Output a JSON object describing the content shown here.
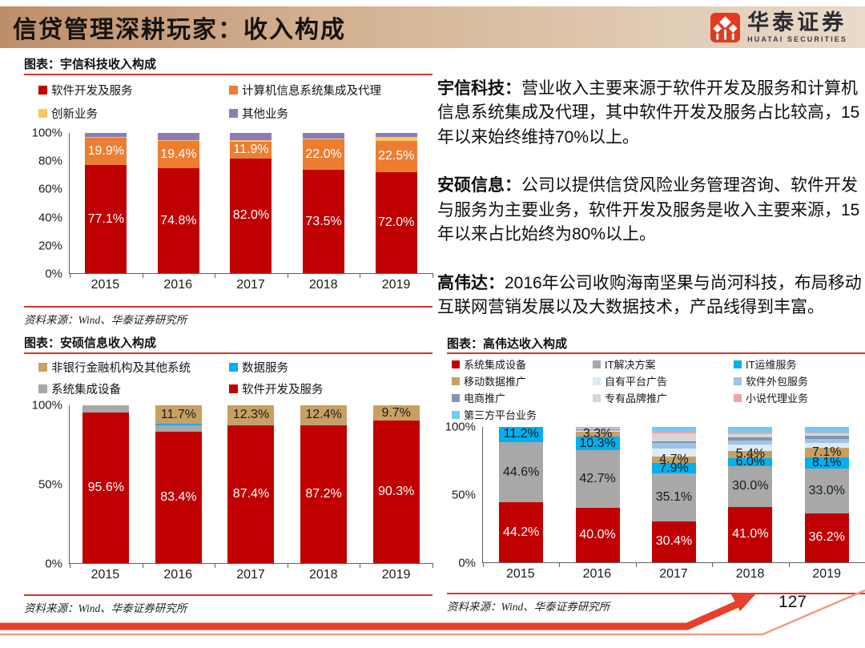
{
  "header": {
    "title": "信贷管理深耕玩家：收入构成",
    "logo": {
      "cn": "华泰证券",
      "en": "HUATAI SECURITIES",
      "brand_red": "#e23a22"
    }
  },
  "commentary": [
    {
      "lead": "宇信科技：",
      "body": "营业收入主要来源于软件开发及服务和计算机信息系统集成及代理，其中软件开发及服务占比较高，15年以来始终维持70%以上。"
    },
    {
      "lead": "安硕信息：",
      "body": "公司以提供信贷风险业务管理咨询、软件开发与服务为主要业务，软件开发及服务是收入主要来源，15年以来占比始终为80%以上。"
    },
    {
      "lead": "高伟达：",
      "body": "2016年公司收购海南坚果与尚河科技，布局移动互联网营销发展以及大数据技术，产品线得到丰富。"
    }
  ],
  "page_number": "127",
  "accent_red": "#d8352a",
  "chart_data": [
    {
      "id": "yuxin",
      "type": "bar",
      "stacked": true,
      "unit": "percent",
      "title": "图表：宇信科技收入构成",
      "source": "资料来源：Wind、华泰证券研究所",
      "categories": [
        "2015",
        "2016",
        "2017",
        "2018",
        "2019"
      ],
      "ylim": [
        0,
        100
      ],
      "yticks": [
        "0%",
        "20%",
        "40%",
        "60%",
        "80%",
        "100%"
      ],
      "legend_order": [
        0,
        1,
        2,
        3
      ],
      "series": [
        {
          "name": "软件开发及服务",
          "color": "#c00000",
          "label_color": "#ffffff",
          "values": [
            77.1,
            74.8,
            82.0,
            73.5,
            72.0
          ],
          "labels": [
            "77.1%",
            "74.8%",
            "82.0%",
            "73.5%",
            "72.0%"
          ]
        },
        {
          "name": "计算机信息系统集成及代理",
          "color": "#ed7d31",
          "label_color": "#ffffff",
          "values": [
            19.9,
            19.4,
            11.9,
            22.0,
            22.5
          ],
          "labels": [
            "19.9%",
            "19.4%",
            "11.9%",
            "22.0%",
            "22.5%"
          ]
        },
        {
          "name": "创新业务",
          "color": "#fbc75d",
          "values": [
            0.4,
            0.6,
            1.1,
            0.5,
            2.5
          ]
        },
        {
          "name": "其他业务",
          "color": "#8b7cb8",
          "values": [
            2.6,
            5.2,
            5.0,
            4.0,
            3.0
          ]
        }
      ]
    },
    {
      "id": "anshuo",
      "type": "bar",
      "stacked": true,
      "unit": "percent",
      "title": "图表：安硕信息收入构成",
      "source": "资料来源：Wind、华泰证券研究所",
      "categories": [
        "2015",
        "2016",
        "2017",
        "2018",
        "2019"
      ],
      "ylim": [
        0,
        100
      ],
      "yticks": [
        "0%",
        "50%",
        "100%"
      ],
      "legend_order": [
        3,
        2,
        1,
        0
      ],
      "series": [
        {
          "name": "软件开发及服务",
          "color": "#c00000",
          "label_color": "#ffffff",
          "values": [
            95.6,
            83.4,
            87.4,
            87.2,
            90.3
          ],
          "labels": [
            "95.6%",
            "83.4%",
            "87.4%",
            "87.2%",
            "90.3%"
          ]
        },
        {
          "name": "系统集成设备",
          "color": "#a8a8a8",
          "values": [
            4.4,
            3.7,
            0.3,
            0.4,
            0.0
          ]
        },
        {
          "name": "数据服务",
          "color": "#00b0f0",
          "values": [
            0.0,
            1.2,
            0.0,
            0.0,
            0.0
          ]
        },
        {
          "name": "非银行金融机构及其他系统",
          "color": "#c9a063",
          "label_color": "#1a1a1a",
          "values": [
            0.0,
            11.7,
            12.3,
            12.4,
            9.7
          ],
          "labels": [
            "",
            "11.7%",
            "12.3%",
            "12.4%",
            "9.7%"
          ]
        }
      ]
    },
    {
      "id": "gaoweida",
      "type": "bar",
      "stacked": true,
      "unit": "percent",
      "title": "图表：高伟达收入构成",
      "source": "资料来源：Wind、华泰证券研究所",
      "categories": [
        "2015",
        "2016",
        "2017",
        "2018",
        "2019"
      ],
      "ylim": [
        0,
        100
      ],
      "yticks": [
        "0%",
        "50%",
        "100%"
      ],
      "legend_order": [
        0,
        1,
        2,
        3,
        4,
        5,
        6,
        7,
        8,
        9
      ],
      "series": [
        {
          "name": "系统集成设备",
          "color": "#c00000",
          "label_color": "#ffffff",
          "values": [
            44.2,
            40.0,
            30.4,
            41.0,
            36.2
          ],
          "labels": [
            "44.2%",
            "40.0%",
            "30.4%",
            "41.0%",
            "36.2%"
          ]
        },
        {
          "name": "IT解决方案",
          "color": "#a8a8a8",
          "label_color": "#1a1a1a",
          "values": [
            44.6,
            42.7,
            35.1,
            30.0,
            33.0
          ],
          "labels": [
            "44.6%",
            "42.7%",
            "35.1%",
            "30.0%",
            "33.0%"
          ]
        },
        {
          "name": "IT运维服务",
          "color": "#00b0f0",
          "label_color": "#1a1a1a",
          "values": [
            11.2,
            10.3,
            7.9,
            6.0,
            8.1
          ],
          "labels": [
            "11.2%",
            "10.3%",
            "7.9%",
            "6.0%",
            "8.1%"
          ]
        },
        {
          "name": "移动数据推广",
          "color": "#c9a063",
          "label_color": "#1a1a1a",
          "values": [
            0.0,
            3.3,
            4.7,
            5.4,
            7.1
          ],
          "labels": [
            "",
            "3.3%",
            "4.7%",
            "5.4%",
            "7.1%"
          ]
        },
        {
          "name": "自有平台广告",
          "color": "#dcebf7",
          "values": [
            0.0,
            1.0,
            6.0,
            4.5,
            4.0
          ]
        },
        {
          "name": "软件外包服务",
          "color": "#9dc3e6",
          "values": [
            0.0,
            0.5,
            4.0,
            3.0,
            2.5
          ]
        },
        {
          "name": "电商推广",
          "color": "#8494b2",
          "values": [
            0.0,
            0.3,
            1.5,
            2.5,
            2.5
          ]
        },
        {
          "name": "专有品牌推广",
          "color": "#d6d6d6",
          "values": [
            0.0,
            1.0,
            5.5,
            2.5,
            2.0
          ]
        },
        {
          "name": "小说代理业务",
          "color": "#f4a3a3",
          "values": [
            0.0,
            0.2,
            1.5,
            1.0,
            0.6
          ]
        },
        {
          "name": "第三方平台业务",
          "color": "#74c9f2",
          "values": [
            0.0,
            0.7,
            3.4,
            4.1,
            4.0
          ]
        }
      ]
    }
  ]
}
